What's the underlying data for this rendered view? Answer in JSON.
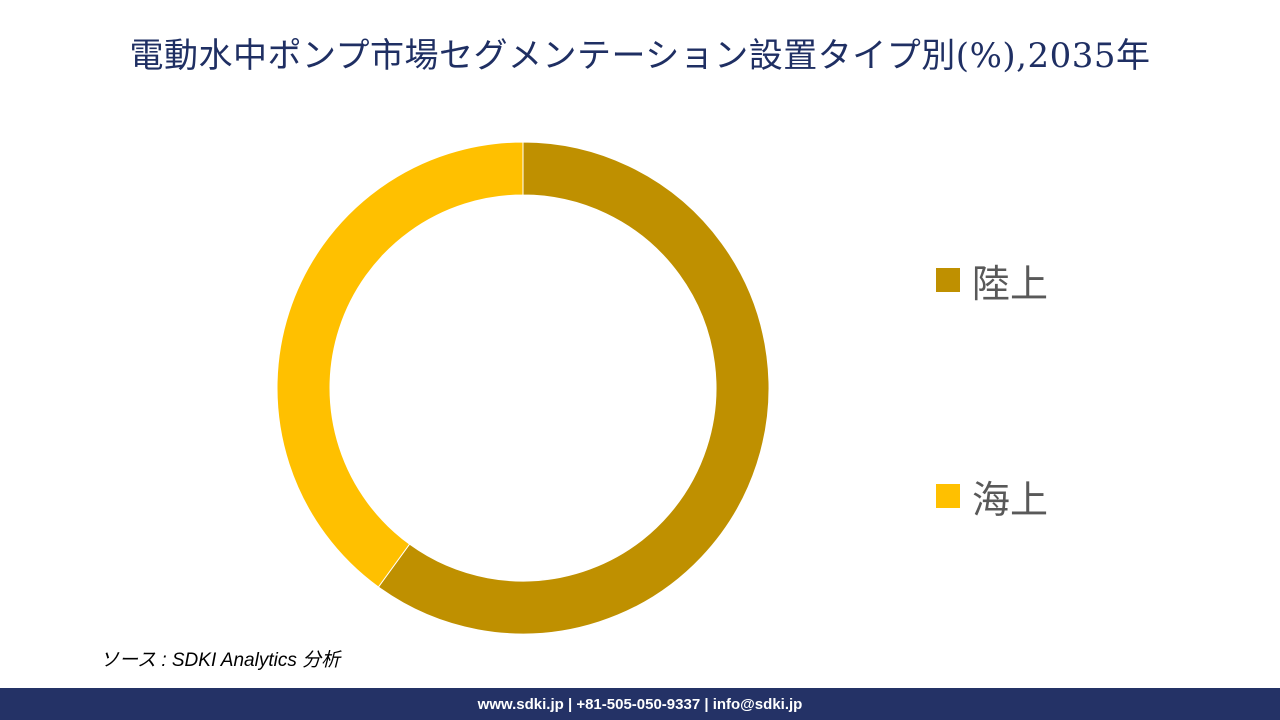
{
  "title": "電動水中ポンプ市場セグメンテーション設置タイプ別(%),2035年",
  "source": "ソース : SDKI Analytics 分析",
  "footer": "www.sdki.jp | +81-505-050-9337 | info@sdki.jp",
  "colors": {
    "title": "#1f2f63",
    "footer_bg": "#243266"
  },
  "chart_data": {
    "type": "pie",
    "donut": true,
    "title": "電動水中ポンプ市場セグメンテーション設置タイプ別(%),2035年",
    "legend_position": "right",
    "slices": [
      {
        "label": "陸上",
        "value": 60,
        "color": "#bf9000"
      },
      {
        "label": "海上",
        "value": 40,
        "color": "#ffc000"
      }
    ]
  }
}
